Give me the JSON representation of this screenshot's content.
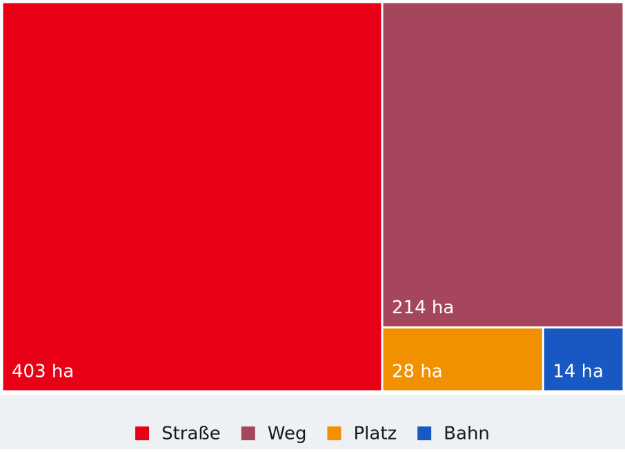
{
  "chart_data": {
    "type": "treemap",
    "series": [
      {
        "name": "Straße",
        "color": "#e90016",
        "values": [
          403
        ],
        "value_labels": [
          "403 ha"
        ]
      },
      {
        "name": "Weg",
        "color": "#a6465d",
        "values": [
          214
        ],
        "value_labels": [
          "214 ha"
        ]
      },
      {
        "name": "Platz",
        "color": "#f29100",
        "values": [
          28
        ],
        "value_labels": [
          "28 ha"
        ]
      },
      {
        "name": "Bahn",
        "color": "#1758c2",
        "values": [
          14
        ],
        "value_labels": [
          "14 ha"
        ]
      }
    ],
    "legend": "bottom"
  }
}
